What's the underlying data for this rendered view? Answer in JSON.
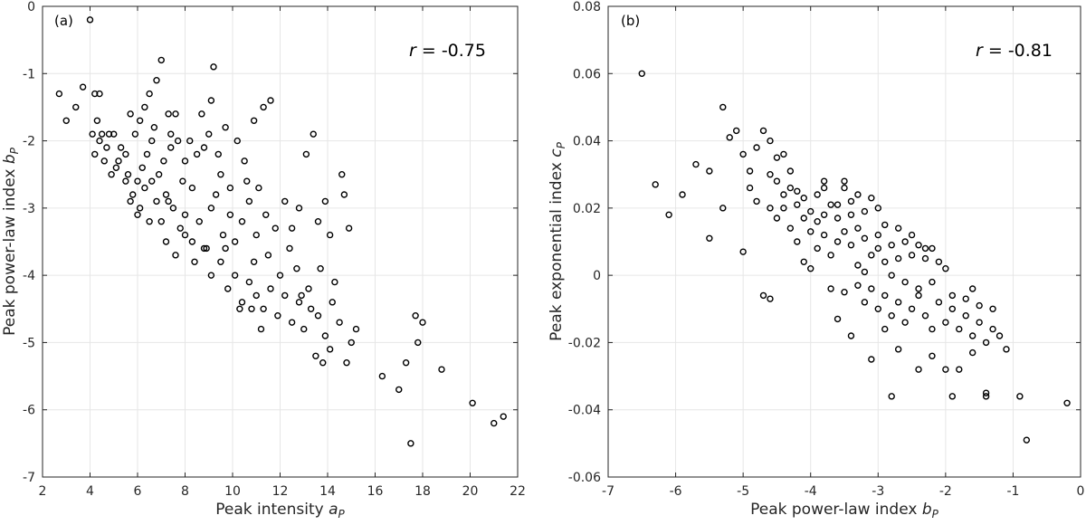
{
  "chart_data": [
    {
      "type": "scatter",
      "panel_label": "(a)",
      "xlabel_main": "Peak intensity ",
      "xlabel_var": "a",
      "xlabel_sub": "P",
      "ylabel_main": "Peak power-law index ",
      "ylabel_var": "b",
      "ylabel_sub": "P",
      "r_symbol": "r",
      "r_value": " = -0.75",
      "xlim": [
        2,
        22
      ],
      "ylim": [
        -7,
        0
      ],
      "xticks": [
        2,
        4,
        6,
        8,
        10,
        12,
        14,
        16,
        18,
        20,
        22
      ],
      "xtick_labels": [
        "2",
        "4",
        "6",
        "8",
        "10",
        "12",
        "14",
        "16",
        "18",
        "20",
        "22"
      ],
      "yticks": [
        -7,
        -6,
        -5,
        -4,
        -3,
        -2,
        -1,
        0
      ],
      "ytick_labels": [
        "-7",
        "-6",
        "-5",
        "-4",
        "-3",
        "-2",
        "-1",
        "0"
      ],
      "points": [
        [
          4.0,
          -0.2
        ],
        [
          2.7,
          -1.3
        ],
        [
          3.0,
          -1.7
        ],
        [
          3.4,
          -1.5
        ],
        [
          3.7,
          -1.2
        ],
        [
          4.2,
          -1.3
        ],
        [
          4.4,
          -1.3
        ],
        [
          4.1,
          -1.9
        ],
        [
          4.3,
          -1.7
        ],
        [
          4.5,
          -1.9
        ],
        [
          4.8,
          -1.9
        ],
        [
          5.0,
          -1.9
        ],
        [
          5.3,
          -2.1
        ],
        [
          5.5,
          -2.2
        ],
        [
          5.7,
          -1.6
        ],
        [
          5.9,
          -1.9
        ],
        [
          6.1,
          -1.7
        ],
        [
          6.3,
          -1.5
        ],
        [
          6.5,
          -1.3
        ],
        [
          6.8,
          -1.1
        ],
        [
          7.0,
          -0.8
        ],
        [
          7.3,
          -1.6
        ],
        [
          7.6,
          -1.6
        ],
        [
          4.2,
          -2.2
        ],
        [
          4.6,
          -2.3
        ],
        [
          4.9,
          -2.5
        ],
        [
          5.2,
          -2.3
        ],
        [
          5.6,
          -2.5
        ],
        [
          5.8,
          -2.8
        ],
        [
          6.0,
          -2.6
        ],
        [
          6.2,
          -2.4
        ],
        [
          6.4,
          -2.2
        ],
        [
          6.6,
          -2.0
        ],
        [
          6.9,
          -2.5
        ],
        [
          7.1,
          -2.3
        ],
        [
          7.4,
          -2.1
        ],
        [
          7.7,
          -2.0
        ],
        [
          8.0,
          -2.3
        ],
        [
          8.2,
          -2.0
        ],
        [
          8.5,
          -2.2
        ],
        [
          8.8,
          -2.1
        ],
        [
          9.0,
          -1.9
        ],
        [
          9.2,
          -0.9
        ],
        [
          9.1,
          -1.4
        ],
        [
          9.4,
          -2.2
        ],
        [
          9.7,
          -1.8
        ],
        [
          10.2,
          -2.0
        ],
        [
          10.5,
          -2.3
        ],
        [
          10.9,
          -1.7
        ],
        [
          11.3,
          -1.5
        ],
        [
          11.6,
          -1.4
        ],
        [
          5.7,
          -2.9
        ],
        [
          6.0,
          -3.1
        ],
        [
          6.3,
          -2.7
        ],
        [
          6.5,
          -3.2
        ],
        [
          6.8,
          -2.9
        ],
        [
          7.0,
          -3.2
        ],
        [
          7.2,
          -2.8
        ],
        [
          7.5,
          -3.0
        ],
        [
          7.8,
          -3.3
        ],
        [
          8.0,
          -3.1
        ],
        [
          8.3,
          -3.5
        ],
        [
          8.6,
          -3.2
        ],
        [
          8.9,
          -3.6
        ],
        [
          9.1,
          -3.0
        ],
        [
          9.3,
          -2.8
        ],
        [
          9.6,
          -3.4
        ],
        [
          9.9,
          -3.1
        ],
        [
          10.1,
          -3.5
        ],
        [
          10.4,
          -3.2
        ],
        [
          10.7,
          -2.9
        ],
        [
          11.0,
          -3.4
        ],
        [
          11.4,
          -3.1
        ],
        [
          11.8,
          -3.3
        ],
        [
          12.2,
          -2.9
        ],
        [
          12.5,
          -3.3
        ],
        [
          12.8,
          -3.0
        ],
        [
          13.1,
          -2.2
        ],
        [
          13.4,
          -1.9
        ],
        [
          13.6,
          -3.2
        ],
        [
          13.9,
          -2.9
        ],
        [
          14.1,
          -3.4
        ],
        [
          14.6,
          -2.5
        ],
        [
          14.7,
          -2.8
        ],
        [
          14.9,
          -3.3
        ],
        [
          7.2,
          -3.5
        ],
        [
          7.6,
          -3.7
        ],
        [
          8.0,
          -3.4
        ],
        [
          8.4,
          -3.8
        ],
        [
          8.8,
          -3.6
        ],
        [
          9.1,
          -4.0
        ],
        [
          9.5,
          -3.8
        ],
        [
          9.8,
          -4.2
        ],
        [
          10.1,
          -4.0
        ],
        [
          10.4,
          -4.4
        ],
        [
          10.7,
          -4.1
        ],
        [
          11.0,
          -4.3
        ],
        [
          11.3,
          -4.5
        ],
        [
          11.6,
          -4.2
        ],
        [
          11.9,
          -4.6
        ],
        [
          12.2,
          -4.3
        ],
        [
          12.5,
          -4.7
        ],
        [
          12.8,
          -4.4
        ],
        [
          13.0,
          -4.8
        ],
        [
          13.3,
          -4.5
        ],
        [
          13.6,
          -4.6
        ],
        [
          13.9,
          -4.9
        ],
        [
          14.2,
          -4.4
        ],
        [
          14.5,
          -4.7
        ],
        [
          14.8,
          -5.3
        ],
        [
          15.0,
          -5.0
        ],
        [
          15.2,
          -4.8
        ],
        [
          13.8,
          -5.3
        ],
        [
          14.1,
          -5.1
        ],
        [
          13.5,
          -5.2
        ],
        [
          16.3,
          -5.5
        ],
        [
          17.0,
          -5.7
        ],
        [
          17.3,
          -5.3
        ],
        [
          17.5,
          -6.5
        ],
        [
          17.8,
          -5.0
        ],
        [
          17.7,
          -4.6
        ],
        [
          18.0,
          -4.7
        ],
        [
          18.8,
          -5.4
        ],
        [
          20.1,
          -5.9
        ],
        [
          21.0,
          -6.2
        ],
        [
          21.4,
          -6.1
        ],
        [
          10.3,
          -4.5
        ],
        [
          10.8,
          -4.5
        ],
        [
          11.2,
          -4.8
        ],
        [
          12.0,
          -4.0
        ],
        [
          12.7,
          -3.9
        ],
        [
          13.2,
          -4.2
        ],
        [
          11.5,
          -3.7
        ],
        [
          10.9,
          -3.8
        ],
        [
          9.7,
          -3.6
        ],
        [
          8.3,
          -2.7
        ],
        [
          7.9,
          -2.6
        ],
        [
          7.3,
          -2.9
        ],
        [
          6.6,
          -2.6
        ],
        [
          6.1,
          -3.0
        ],
        [
          5.5,
          -2.6
        ],
        [
          5.1,
          -2.4
        ],
        [
          4.7,
          -2.1
        ],
        [
          4.4,
          -2.0
        ],
        [
          6.7,
          -1.8
        ],
        [
          7.4,
          -1.9
        ],
        [
          8.7,
          -1.6
        ],
        [
          9.5,
          -2.5
        ],
        [
          9.9,
          -2.7
        ],
        [
          10.6,
          -2.6
        ],
        [
          11.1,
          -2.7
        ],
        [
          12.4,
          -3.6
        ],
        [
          12.9,
          -4.3
        ],
        [
          13.7,
          -3.9
        ],
        [
          14.3,
          -4.1
        ]
      ]
    },
    {
      "type": "scatter",
      "panel_label": "(b)",
      "xlabel_main": "Peak power-law index ",
      "xlabel_var": "b",
      "xlabel_sub": "P",
      "ylabel_main": "Peak exponential index ",
      "ylabel_var": "c",
      "ylabel_sub": "P",
      "r_symbol": "r",
      "r_value": " = -0.81",
      "xlim": [
        -7,
        0
      ],
      "ylim": [
        -0.06,
        0.08
      ],
      "xticks": [
        -7,
        -6,
        -5,
        -4,
        -3,
        -2,
        -1,
        0
      ],
      "xtick_labels": [
        "-7",
        "-6",
        "-5",
        "-4",
        "-3",
        "-2",
        "-1",
        "0"
      ],
      "yticks": [
        -0.06,
        -0.04,
        -0.02,
        0,
        0.02,
        0.04,
        0.06,
        0.08
      ],
      "ytick_labels": [
        "-0.06",
        "-0.04",
        "-0.02",
        "0",
        "0.02",
        "0.04",
        "0.06",
        "0.08"
      ],
      "points": [
        [
          -6.5,
          0.06
        ],
        [
          -6.3,
          0.027
        ],
        [
          -6.1,
          0.018
        ],
        [
          -5.9,
          0.024
        ],
        [
          -5.7,
          0.033
        ],
        [
          -5.5,
          0.031
        ],
        [
          -5.3,
          0.05
        ],
        [
          -5.3,
          0.02
        ],
        [
          -5.2,
          0.041
        ],
        [
          -5.1,
          0.043
        ],
        [
          -5.0,
          0.036
        ],
        [
          -4.9,
          0.031
        ],
        [
          -4.8,
          0.038
        ],
        [
          -4.7,
          0.043
        ],
        [
          -4.6,
          0.04
        ],
        [
          -4.5,
          0.035
        ],
        [
          -4.4,
          0.036
        ],
        [
          -5.5,
          0.011
        ],
        [
          -5.0,
          0.007
        ],
        [
          -4.7,
          -0.006
        ],
        [
          -4.6,
          -0.007
        ],
        [
          -4.9,
          0.026
        ],
        [
          -4.8,
          0.022
        ],
        [
          -4.6,
          0.02
        ],
        [
          -4.5,
          0.028
        ],
        [
          -4.4,
          0.024
        ],
        [
          -4.3,
          0.026
        ],
        [
          -4.2,
          0.021
        ],
        [
          -4.1,
          0.023
        ],
        [
          -4.0,
          0.019
        ],
        [
          -3.9,
          0.024
        ],
        [
          -3.8,
          0.028
        ],
        [
          -3.7,
          0.021
        ],
        [
          -3.6,
          0.017
        ],
        [
          -3.5,
          0.026
        ],
        [
          -3.4,
          0.022
        ],
        [
          -3.3,
          0.024
        ],
        [
          -3.2,
          0.019
        ],
        [
          -3.1,
          0.023
        ],
        [
          -3.0,
          0.02
        ],
        [
          -2.9,
          0.015
        ],
        [
          -4.3,
          0.014
        ],
        [
          -4.2,
          0.01
        ],
        [
          -4.1,
          0.004
        ],
        [
          -4.0,
          0.013
        ],
        [
          -3.9,
          0.008
        ],
        [
          -3.8,
          0.012
        ],
        [
          -3.7,
          0.006
        ],
        [
          -3.6,
          0.01
        ],
        [
          -3.5,
          0.013
        ],
        [
          -3.4,
          0.009
        ],
        [
          -3.3,
          0.014
        ],
        [
          -3.2,
          0.011
        ],
        [
          -3.1,
          0.006
        ],
        [
          -3.0,
          0.008
        ],
        [
          -2.9,
          0.004
        ],
        [
          -2.8,
          0.009
        ],
        [
          -2.7,
          0.005
        ],
        [
          -2.6,
          0.01
        ],
        [
          -2.5,
          0.006
        ],
        [
          -2.4,
          0.009
        ],
        [
          -2.3,
          0.005
        ],
        [
          -2.2,
          0.008
        ],
        [
          -2.1,
          0.004
        ],
        [
          -2.0,
          0.002
        ],
        [
          -3.5,
          -0.005
        ],
        [
          -3.3,
          -0.003
        ],
        [
          -3.2,
          -0.008
        ],
        [
          -3.1,
          -0.004
        ],
        [
          -3.0,
          -0.01
        ],
        [
          -2.9,
          -0.006
        ],
        [
          -2.8,
          -0.012
        ],
        [
          -2.7,
          -0.008
        ],
        [
          -2.6,
          -0.014
        ],
        [
          -2.5,
          -0.01
        ],
        [
          -2.4,
          -0.006
        ],
        [
          -2.3,
          -0.012
        ],
        [
          -2.2,
          -0.016
        ],
        [
          -2.1,
          -0.008
        ],
        [
          -2.0,
          -0.014
        ],
        [
          -1.9,
          -0.01
        ],
        [
          -1.8,
          -0.016
        ],
        [
          -1.7,
          -0.012
        ],
        [
          -1.6,
          -0.018
        ],
        [
          -1.5,
          -0.014
        ],
        [
          -1.4,
          -0.02
        ],
        [
          -1.3,
          -0.016
        ],
        [
          -1.2,
          -0.018
        ],
        [
          -1.1,
          -0.022
        ],
        [
          -1.5,
          -0.009
        ],
        [
          -1.3,
          -0.01
        ],
        [
          -3.4,
          -0.018
        ],
        [
          -3.1,
          -0.025
        ],
        [
          -2.9,
          -0.016
        ],
        [
          -2.7,
          -0.022
        ],
        [
          -2.4,
          -0.028
        ],
        [
          -2.2,
          -0.024
        ],
        [
          -2.0,
          -0.028
        ],
        [
          -1.8,
          -0.028
        ],
        [
          -1.6,
          -0.023
        ],
        [
          -1.9,
          -0.036
        ],
        [
          -1.4,
          -0.035
        ],
        [
          -1.4,
          -0.036
        ],
        [
          -2.8,
          -0.036
        ],
        [
          -0.9,
          -0.036
        ],
        [
          -0.8,
          -0.049
        ],
        [
          -0.2,
          -0.038
        ],
        [
          -3.7,
          -0.004
        ],
        [
          -3.6,
          -0.013
        ],
        [
          -4.0,
          0.002
        ],
        [
          -4.4,
          0.02
        ],
        [
          -4.5,
          0.017
        ],
        [
          -3.9,
          0.016
        ],
        [
          -3.6,
          0.021
        ],
        [
          -3.4,
          0.018
        ],
        [
          -3.3,
          0.003
        ],
        [
          -3.2,
          0.001
        ],
        [
          -2.8,
          0.0
        ],
        [
          -2.6,
          -0.002
        ],
        [
          -2.4,
          -0.004
        ],
        [
          -2.2,
          -0.002
        ],
        [
          -1.9,
          -0.006
        ],
        [
          -1.7,
          -0.007
        ],
        [
          -1.6,
          -0.004
        ],
        [
          -3.0,
          0.012
        ],
        [
          -2.7,
          0.014
        ],
        [
          -2.5,
          0.012
        ],
        [
          -2.3,
          0.008
        ],
        [
          -3.8,
          0.018
        ],
        [
          -4.1,
          0.017
        ],
        [
          -4.3,
          0.031
        ],
        [
          -4.6,
          0.03
        ],
        [
          -4.2,
          0.025
        ],
        [
          -3.8,
          0.026
        ],
        [
          -3.5,
          0.028
        ]
      ]
    }
  ]
}
